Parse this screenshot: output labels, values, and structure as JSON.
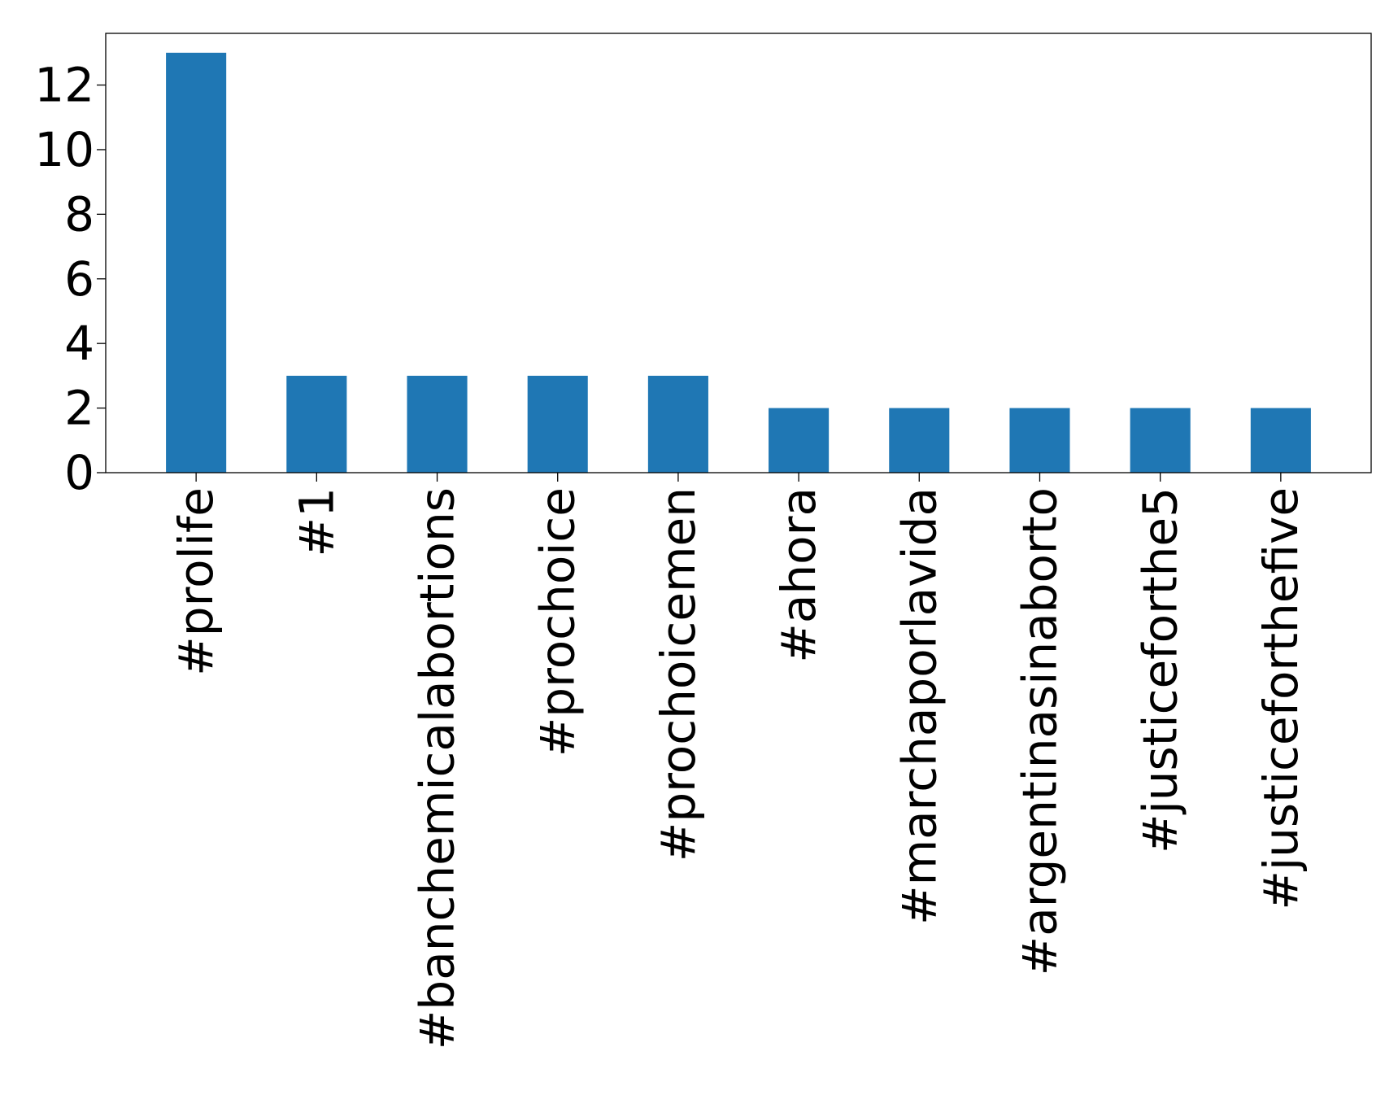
{
  "chart_data": {
    "type": "bar",
    "title": "",
    "xlabel": "",
    "ylabel": "",
    "categories": [
      "#prolife",
      "#1",
      "#banchemicalabortions",
      "#prochoice",
      "#prochoicemen",
      "#ahora",
      "#marchaporlavida",
      "#argentinasinaborto",
      "#justiceforthe5",
      "#justiceforthefive"
    ],
    "values": [
      13,
      3,
      3,
      3,
      3,
      2,
      2,
      2,
      2,
      2
    ],
    "ylim": [
      0,
      13.6
    ],
    "yticks": [
      0,
      2,
      4,
      6,
      8,
      10,
      12
    ],
    "grid": false,
    "legend": "none",
    "bar_color": "#1f77b4"
  }
}
